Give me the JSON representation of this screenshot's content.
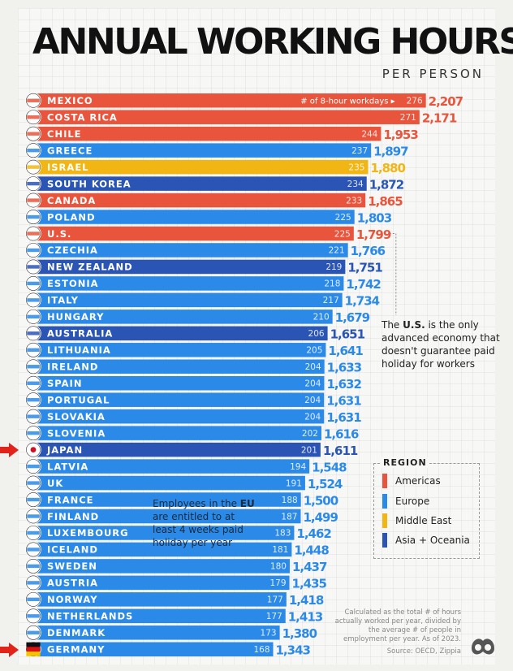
{
  "title": "ANNUAL WORKING HOURS",
  "subtitle": "PER PERSON",
  "colors": {
    "Americas": "#e8553c",
    "Europe": "#2b8ae8",
    "Middle East": "#f2b614",
    "Asia + Oceania": "#2a55b4"
  },
  "chart_data": {
    "type": "bar",
    "orientation": "horizontal",
    "value_label": "# of 8-hour workdays",
    "categories": [
      "MEXICO",
      "COSTA RICA",
      "CHILE",
      "GREECE",
      "ISRAEL",
      "SOUTH KOREA",
      "CANADA",
      "POLAND",
      "U.S.",
      "CZECHIA",
      "NEW ZEALAND",
      "ESTONIA",
      "ITALY",
      "HUNGARY",
      "AUSTRALIA",
      "LITHUANIA",
      "IRELAND",
      "SPAIN",
      "PORTUGAL",
      "SLOVAKIA",
      "SLOVENIA",
      "JAPAN",
      "LATVIA",
      "UK",
      "FRANCE",
      "FINLAND",
      "LUXEMBOURG",
      "ICELAND",
      "SWEDEN",
      "AUSTRIA",
      "NORWAY",
      "NETHERLANDS",
      "DENMARK",
      "GERMANY"
    ],
    "series": [
      {
        "values": [
          2207,
          2171,
          1953,
          1897,
          1880,
          1872,
          1865,
          1803,
          1799,
          1766,
          1751,
          1742,
          1734,
          1679,
          1651,
          1641,
          1633,
          1632,
          1631,
          1631,
          1616,
          1611,
          1548,
          1524,
          1500,
          1499,
          1462,
          1448,
          1437,
          1435,
          1418,
          1413,
          1380,
          1343
        ]
      },
      {
        "name": "# of 8-hour workdays",
        "values": [
          276,
          271,
          244,
          237,
          235,
          234,
          233,
          225,
          225,
          221,
          219,
          218,
          217,
          210,
          206,
          205,
          204,
          204,
          204,
          204,
          202,
          201,
          194,
          191,
          188,
          187,
          183,
          181,
          180,
          179,
          177,
          177,
          173,
          168
        ]
      }
    ],
    "hours_labels": [
      "2,207",
      "2,171",
      "1,953",
      "1,897",
      "1,880",
      "1,872",
      "1,865",
      "1,803",
      "1,799",
      "1,766",
      "1,751",
      "1,742",
      "1,734",
      "1,679",
      "1,651",
      "1,641",
      "1,633",
      "1,632",
      "1,631",
      "1,631",
      "1,616",
      "1,611",
      "1,548",
      "1,524",
      "1,500",
      "1,499",
      "1,462",
      "1,448",
      "1,437",
      "1,435",
      "1,418",
      "1,413",
      "1,380",
      "1,343"
    ],
    "regions": [
      "Americas",
      "Americas",
      "Americas",
      "Europe",
      "Middle East",
      "Asia + Oceania",
      "Americas",
      "Europe",
      "Americas",
      "Europe",
      "Asia + Oceania",
      "Europe",
      "Europe",
      "Europe",
      "Asia + Oceania",
      "Europe",
      "Europe",
      "Europe",
      "Europe",
      "Europe",
      "Europe",
      "Asia + Oceania",
      "Europe",
      "Europe",
      "Europe",
      "Europe",
      "Europe",
      "Europe",
      "Europe",
      "Europe",
      "Europe",
      "Europe",
      "Europe",
      "Europe"
    ],
    "highlighted": [
      "JAPAN",
      "GERMANY"
    ]
  },
  "legend": {
    "title": "REGION",
    "items": [
      "Americas",
      "Europe",
      "Middle East",
      "Asia + Oceania"
    ]
  },
  "us_note": {
    "bold": "U.S.",
    "before": "The ",
    "after": " is the only advanced economy that doesn't guarantee paid holiday for workers"
  },
  "eu_note": {
    "before": "Employees in the ",
    "bold": "EU",
    "after": " are entitled to at least 4 weeks paid holiday per year"
  },
  "method_note": "Calculated as the total # of hours actually worked per year, divided by the average # of people in employment per year. As of 2023.",
  "source_note": "Source: OECD, Zippia"
}
